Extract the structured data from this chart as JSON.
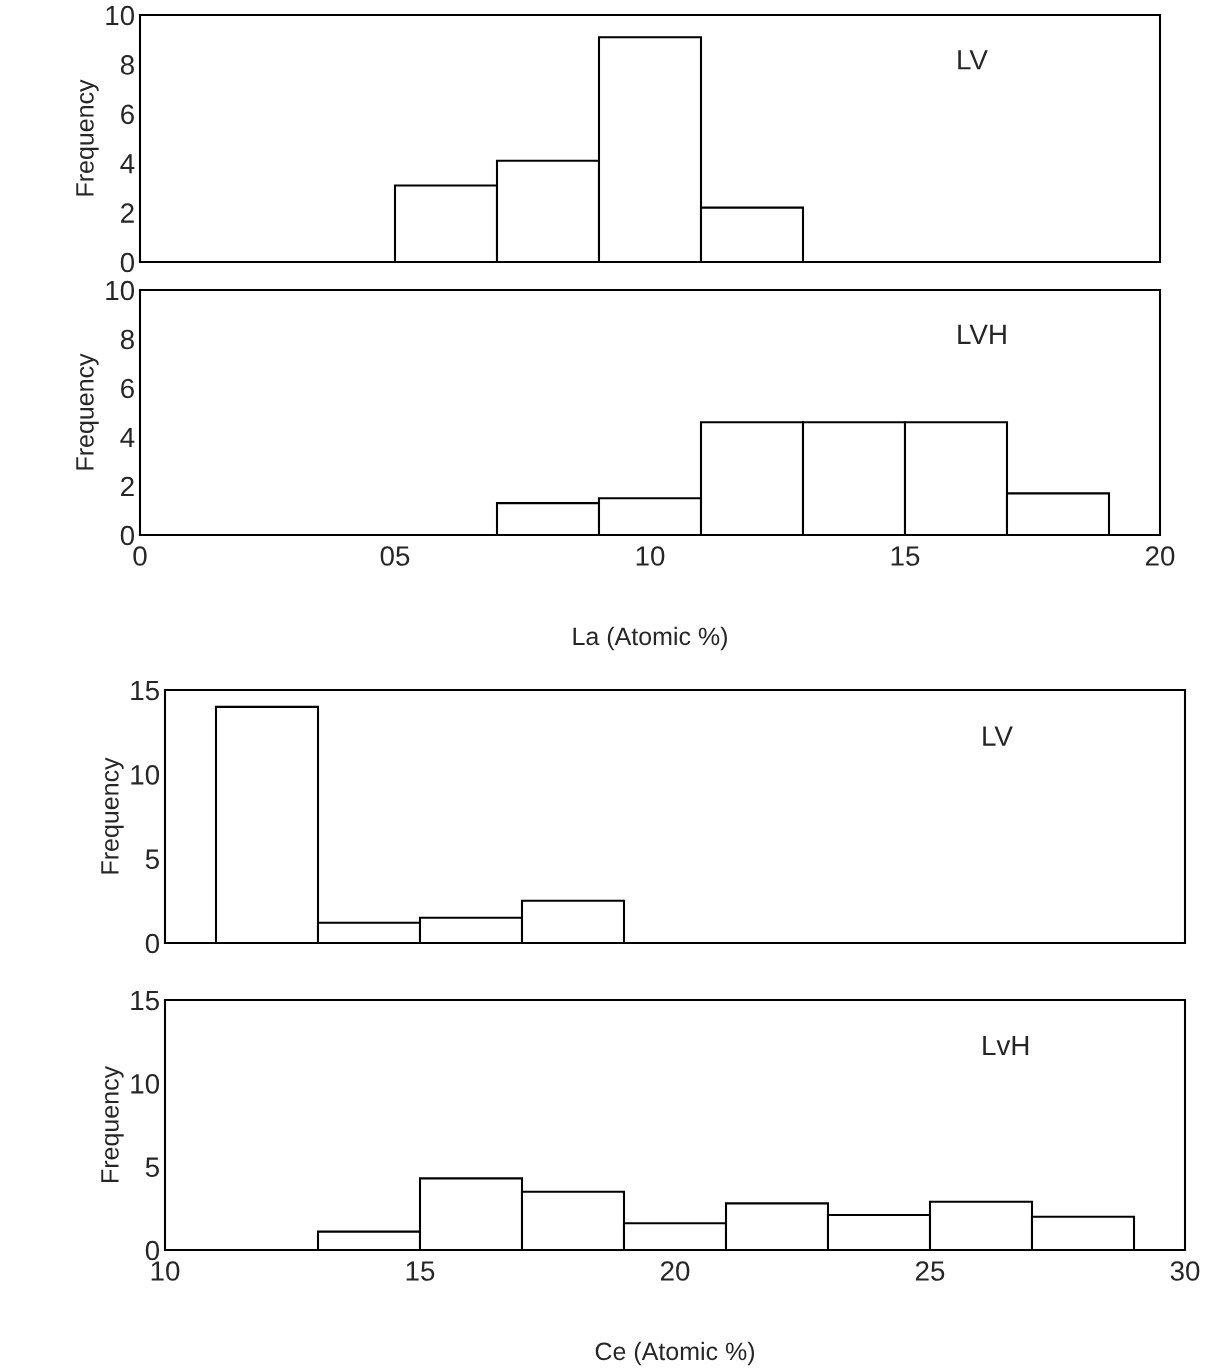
{
  "chart_data": [
    {
      "type": "histogram",
      "bins": [
        5,
        7,
        9,
        11,
        13
      ],
      "values": [
        3.1,
        4.1,
        9.1,
        2.2
      ],
      "color": "#ffffff",
      "ylabel": "Frequency",
      "annotations": [
        "LV"
      ],
      "xlim": [
        0,
        20
      ],
      "xticks": [
        0,
        5,
        10,
        15,
        20
      ],
      "ylim": [
        0,
        10
      ],
      "yticks": [
        0,
        2,
        4,
        6,
        8,
        10
      ],
      "tick_labels": "y",
      "grid": false
    },
    {
      "type": "histogram",
      "bins": [
        7,
        9,
        11,
        13,
        15,
        17,
        19
      ],
      "values": [
        1.3,
        1.5,
        4.6,
        4.6,
        4.6,
        1.7
      ],
      "color": "#ffffff",
      "ylabel": "Frequency",
      "xlabel": "La (Atomic %)",
      "annotations": [
        "LVH"
      ],
      "xlim": [
        0,
        20
      ],
      "xticks": [
        0,
        {
          "value": 5,
          "label": "05"
        },
        10,
        15,
        20
      ],
      "ylim": [
        0,
        10
      ],
      "yticks": [
        0,
        2,
        4,
        6,
        8,
        10
      ],
      "grid": false
    },
    {
      "type": "histogram",
      "bins": [
        11,
        13,
        15,
        17,
        19
      ],
      "values": [
        14,
        1.2,
        1.5,
        2.5
      ],
      "color": "#ffffff",
      "ylabel": "Frequency",
      "annotations": [
        "LV"
      ],
      "xlim": [
        10,
        30
      ],
      "xticks": [
        10,
        15,
        20,
        25,
        30
      ],
      "ylim": [
        0,
        15
      ],
      "yticks": [
        0,
        5,
        10,
        15
      ],
      "tick_labels": "y",
      "grid": false
    },
    {
      "type": "histogram",
      "bins": [
        13,
        15,
        17,
        19,
        21,
        23,
        25,
        27,
        29
      ],
      "values": [
        1.1,
        4.3,
        3.5,
        1.6,
        2.8,
        2.1,
        2.9,
        2.0
      ],
      "color": "#ffffff",
      "ylabel": "Frequency",
      "xlabel": "Ce (Atomic %)",
      "annotations": [
        "LvH"
      ],
      "xlim": [
        10,
        30
      ],
      "xticks": [
        10,
        15,
        20,
        25,
        30
      ],
      "ylim": [
        0,
        15
      ],
      "yticks": [
        0,
        5,
        10,
        15
      ],
      "grid": false
    }
  ]
}
